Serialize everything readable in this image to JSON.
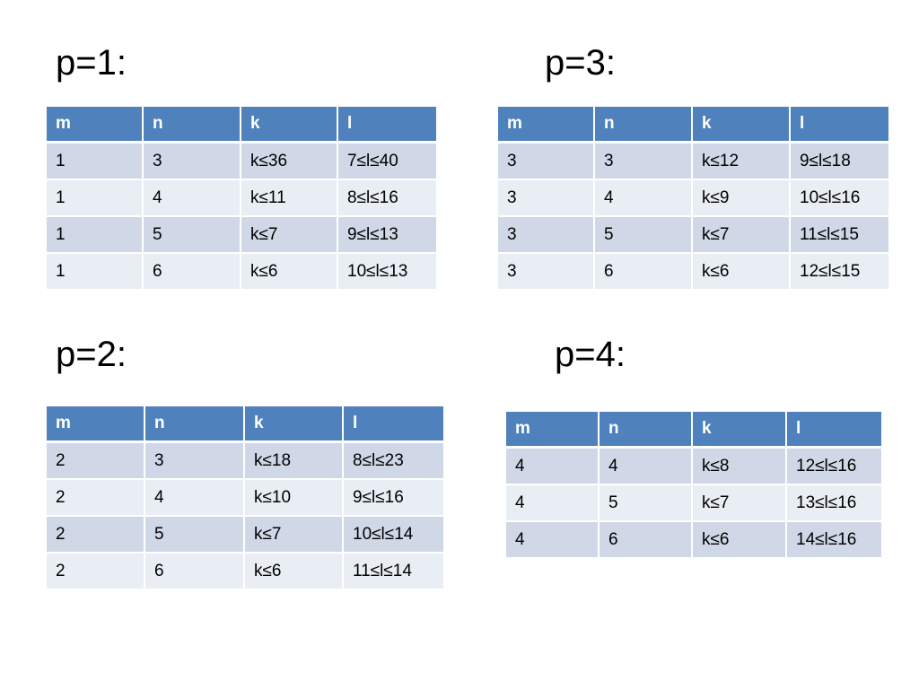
{
  "tables": [
    {
      "heading": "p=1:",
      "columns": [
        "m",
        "n",
        "k",
        "l"
      ],
      "rows": [
        [
          "1",
          "3",
          "k≤36",
          "7≤l≤40"
        ],
        [
          "1",
          "4",
          "k≤11",
          "8≤l≤16"
        ],
        [
          "1",
          "5",
          "k≤7",
          "9≤l≤13"
        ],
        [
          "1",
          "6",
          "k≤6",
          "10≤l≤13"
        ]
      ]
    },
    {
      "heading": "p=3:",
      "columns": [
        "m",
        "n",
        "k",
        "l"
      ],
      "rows": [
        [
          "3",
          "3",
          "k≤12",
          "9≤l≤18"
        ],
        [
          "3",
          "4",
          "k≤9",
          "10≤l≤16"
        ],
        [
          "3",
          "5",
          "k≤7",
          "11≤l≤15"
        ],
        [
          "3",
          "6",
          "k≤6",
          "12≤l≤15"
        ]
      ]
    },
    {
      "heading": "p=2:",
      "columns": [
        "m",
        "n",
        "k",
        "l"
      ],
      "rows": [
        [
          "2",
          "3",
          "k≤18",
          "8≤l≤23"
        ],
        [
          "2",
          "4",
          "k≤10",
          "9≤l≤16"
        ],
        [
          "2",
          "5",
          "k≤7",
          "10≤l≤14"
        ],
        [
          "2",
          "6",
          "k≤6",
          "11≤l≤14"
        ]
      ]
    },
    {
      "heading": "p=4:",
      "columns": [
        "m",
        "n",
        "k",
        "l"
      ],
      "rows": [
        [
          "4",
          "4",
          "k≤8",
          "12≤l≤16"
        ],
        [
          "4",
          "5",
          "k≤7",
          "13≤l≤16"
        ],
        [
          "4",
          "6",
          "k≤6",
          "14≤l≤16"
        ]
      ]
    }
  ]
}
